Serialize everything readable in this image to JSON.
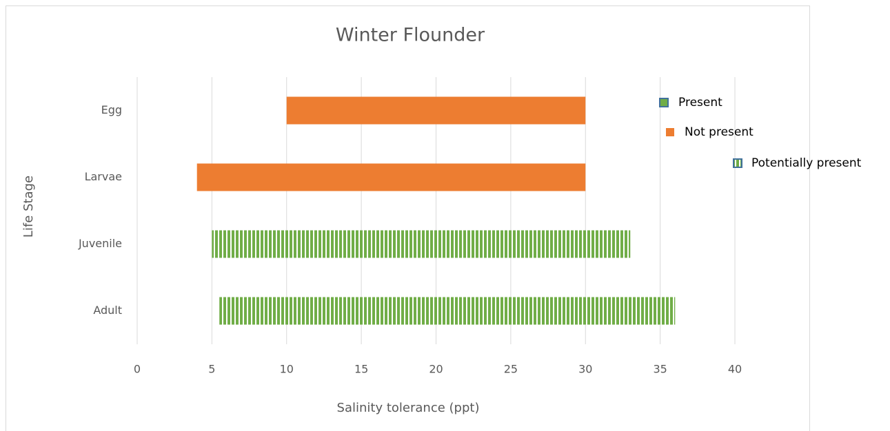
{
  "chart_data": {
    "type": "bar",
    "orientation": "horizontal",
    "title": "Winter Flounder",
    "xlabel": "Salinity tolerance (ppt)",
    "ylabel": "Life Stage",
    "categories": [
      "Egg",
      "Larvae",
      "Juvenile",
      "Adult"
    ],
    "series": [
      {
        "name": "Present",
        "color": "#70ad47",
        "edgecolor": "#41719c",
        "start": [
          null,
          null,
          null,
          null
        ],
        "end": [
          null,
          null,
          null,
          null
        ]
      },
      {
        "name": "Not present",
        "color": "#ed7d31",
        "start": [
          10,
          4,
          null,
          null
        ],
        "end": [
          30,
          30,
          null,
          null
        ]
      },
      {
        "name": "Potentially present",
        "color": "#70ad47",
        "edgecolor": "#41719c",
        "pattern": "vertical-stripes",
        "start": [
          null,
          null,
          5,
          5.5
        ],
        "end": [
          null,
          null,
          33,
          36
        ]
      }
    ],
    "xlim": [
      0,
      40
    ],
    "xticks": [
      0,
      5,
      10,
      15,
      20,
      25,
      30,
      35,
      40
    ],
    "grid": true
  }
}
